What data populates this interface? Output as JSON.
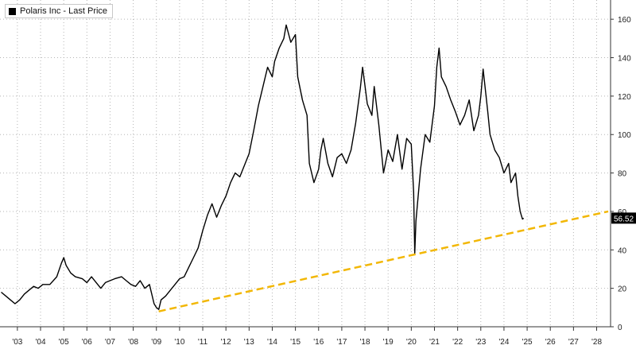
{
  "chart_data": {
    "type": "line",
    "legend": {
      "label": "Polaris Inc - Last Price",
      "placement": "top-left"
    },
    "last_price_label": "56.52",
    "ylim": [
      0,
      170
    ],
    "yticks": [
      0,
      20,
      40,
      60,
      80,
      100,
      120,
      140,
      160
    ],
    "xlim": [
      2002.25,
      2028.6
    ],
    "xticks": [
      {
        "x": 2003,
        "label": "'03"
      },
      {
        "x": 2004,
        "label": "'04"
      },
      {
        "x": 2005,
        "label": "'05"
      },
      {
        "x": 2006,
        "label": "'06"
      },
      {
        "x": 2007,
        "label": "'07"
      },
      {
        "x": 2008,
        "label": "'08"
      },
      {
        "x": 2009,
        "label": "'09"
      },
      {
        "x": 2010,
        "label": "'10"
      },
      {
        "x": 2011,
        "label": "'11"
      },
      {
        "x": 2012,
        "label": "'12"
      },
      {
        "x": 2013,
        "label": "'13"
      },
      {
        "x": 2014,
        "label": "'14"
      },
      {
        "x": 2015,
        "label": "'15"
      },
      {
        "x": 2016,
        "label": "'16"
      },
      {
        "x": 2017,
        "label": "'17"
      },
      {
        "x": 2018,
        "label": "'18"
      },
      {
        "x": 2019,
        "label": "'19"
      },
      {
        "x": 2020,
        "label": "'20"
      },
      {
        "x": 2021,
        "label": "'21"
      },
      {
        "x": 2022,
        "label": "'22"
      },
      {
        "x": 2023,
        "label": "'23"
      },
      {
        "x": 2024,
        "label": "'24"
      },
      {
        "x": 2025,
        "label": "'25"
      },
      {
        "x": 2026,
        "label": "'26"
      },
      {
        "x": 2027,
        "label": "'27"
      },
      {
        "x": 2028,
        "label": "'28"
      }
    ],
    "grid": true,
    "colors": {
      "price": "#000000",
      "trendline": "#f2b705",
      "grid": "#b5b5b5",
      "label_bg": "#000000"
    },
    "series": [
      {
        "values": [
          [
            2002.3,
            18
          ],
          [
            2002.5,
            16
          ],
          [
            2002.7,
            14
          ],
          [
            2002.9,
            12
          ],
          [
            2003.1,
            14
          ],
          [
            2003.3,
            17
          ],
          [
            2003.5,
            19
          ],
          [
            2003.7,
            21
          ],
          [
            2003.9,
            20
          ],
          [
            2004.1,
            22
          ],
          [
            2004.4,
            22
          ],
          [
            2004.7,
            26
          ],
          [
            2004.9,
            33
          ],
          [
            2005.0,
            36
          ],
          [
            2005.1,
            32
          ],
          [
            2005.3,
            28
          ],
          [
            2005.5,
            26
          ],
          [
            2005.8,
            25
          ],
          [
            2006.0,
            23
          ],
          [
            2006.2,
            26
          ],
          [
            2006.4,
            23
          ],
          [
            2006.6,
            20
          ],
          [
            2006.8,
            23
          ],
          [
            2007.0,
            24
          ],
          [
            2007.2,
            25
          ],
          [
            2007.5,
            26
          ],
          [
            2007.7,
            24
          ],
          [
            2007.9,
            22
          ],
          [
            2008.1,
            21
          ],
          [
            2008.3,
            24
          ],
          [
            2008.5,
            20
          ],
          [
            2008.7,
            22
          ],
          [
            2008.9,
            12
          ],
          [
            2009.0,
            10
          ],
          [
            2009.1,
            9
          ],
          [
            2009.2,
            14
          ],
          [
            2009.4,
            16
          ],
          [
            2009.6,
            19
          ],
          [
            2009.8,
            22
          ],
          [
            2010.0,
            25
          ],
          [
            2010.2,
            26
          ],
          [
            2010.4,
            31
          ],
          [
            2010.6,
            36
          ],
          [
            2010.8,
            41
          ],
          [
            2011.0,
            50
          ],
          [
            2011.2,
            58
          ],
          [
            2011.4,
            64
          ],
          [
            2011.6,
            57
          ],
          [
            2011.8,
            63
          ],
          [
            2012.0,
            68
          ],
          [
            2012.2,
            75
          ],
          [
            2012.4,
            80
          ],
          [
            2012.6,
            78
          ],
          [
            2012.8,
            84
          ],
          [
            2013.0,
            90
          ],
          [
            2013.2,
            102
          ],
          [
            2013.4,
            115
          ],
          [
            2013.6,
            125
          ],
          [
            2013.8,
            135
          ],
          [
            2014.0,
            130
          ],
          [
            2014.1,
            138
          ],
          [
            2014.3,
            145
          ],
          [
            2014.5,
            150
          ],
          [
            2014.6,
            157
          ],
          [
            2014.8,
            148
          ],
          [
            2015.0,
            152
          ],
          [
            2015.1,
            130
          ],
          [
            2015.3,
            118
          ],
          [
            2015.5,
            110
          ],
          [
            2015.6,
            85
          ],
          [
            2015.8,
            75
          ],
          [
            2016.0,
            82
          ],
          [
            2016.1,
            92
          ],
          [
            2016.2,
            98
          ],
          [
            2016.4,
            85
          ],
          [
            2016.6,
            78
          ],
          [
            2016.8,
            88
          ],
          [
            2017.0,
            90
          ],
          [
            2017.2,
            85
          ],
          [
            2017.4,
            92
          ],
          [
            2017.6,
            106
          ],
          [
            2017.8,
            124
          ],
          [
            2017.9,
            135
          ],
          [
            2018.1,
            116
          ],
          [
            2018.3,
            110
          ],
          [
            2018.4,
            125
          ],
          [
            2018.6,
            105
          ],
          [
            2018.8,
            80
          ],
          [
            2019.0,
            92
          ],
          [
            2019.2,
            86
          ],
          [
            2019.4,
            100
          ],
          [
            2019.6,
            82
          ],
          [
            2019.8,
            98
          ],
          [
            2020.0,
            95
          ],
          [
            2020.1,
            70
          ],
          [
            2020.15,
            38
          ],
          [
            2020.2,
            55
          ],
          [
            2020.4,
            82
          ],
          [
            2020.6,
            100
          ],
          [
            2020.8,
            96
          ],
          [
            2021.0,
            115
          ],
          [
            2021.1,
            135
          ],
          [
            2021.2,
            145
          ],
          [
            2021.3,
            130
          ],
          [
            2021.5,
            125
          ],
          [
            2021.7,
            118
          ],
          [
            2021.9,
            112
          ],
          [
            2022.1,
            105
          ],
          [
            2022.3,
            110
          ],
          [
            2022.5,
            118
          ],
          [
            2022.7,
            102
          ],
          [
            2022.9,
            110
          ],
          [
            2023.0,
            120
          ],
          [
            2023.1,
            134
          ],
          [
            2023.3,
            112
          ],
          [
            2023.4,
            100
          ],
          [
            2023.6,
            92
          ],
          [
            2023.8,
            88
          ],
          [
            2024.0,
            80
          ],
          [
            2024.2,
            85
          ],
          [
            2024.3,
            75
          ],
          [
            2024.5,
            80
          ],
          [
            2024.6,
            68
          ],
          [
            2024.7,
            60
          ],
          [
            2024.8,
            56
          ],
          [
            2024.85,
            56.52
          ]
        ]
      },
      {
        "values": [
          [
            2009.1,
            8
          ],
          [
            2028.5,
            60
          ]
        ]
      }
    ]
  }
}
